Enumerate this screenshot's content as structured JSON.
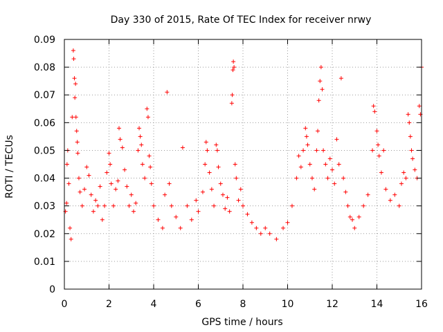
{
  "chart_data": {
    "type": "scatter",
    "title": "Day 330 of 2015, Rate Of TEC Index for receiver nrwy",
    "xlabel": "GPS time / hours",
    "ylabel": "ROTI / TECUs",
    "xlim": [
      0,
      16
    ],
    "ylim": [
      0,
      0.09
    ],
    "x_ticks": [
      0,
      2,
      4,
      6,
      8,
      10,
      12,
      14,
      16
    ],
    "x_tick_labels": [
      "0",
      "2",
      "4",
      "6",
      "8",
      "10",
      "12",
      "14",
      "16"
    ],
    "y_ticks": [
      0,
      0.01,
      0.02,
      0.03,
      0.04,
      0.05,
      0.06,
      0.07,
      0.08,
      0.09
    ],
    "y_tick_labels": [
      "0",
      "0.01",
      "0.02",
      "0.03",
      "0.04",
      "0.05",
      "0.06",
      "0.07",
      "0.08",
      "0.09"
    ],
    "grid": true,
    "marker": "+",
    "marker_color": "#ff0000",
    "series": [
      {
        "name": "ROTI",
        "points": [
          [
            0.05,
            0.028
          ],
          [
            0.1,
            0.031
          ],
          [
            0.12,
            0.045
          ],
          [
            0.15,
            0.05
          ],
          [
            0.2,
            0.038
          ],
          [
            0.25,
            0.022
          ],
          [
            0.3,
            0.018
          ],
          [
            0.35,
            0.062
          ],
          [
            0.4,
            0.086
          ],
          [
            0.42,
            0.083
          ],
          [
            0.45,
            0.076
          ],
          [
            0.47,
            0.069
          ],
          [
            0.5,
            0.074
          ],
          [
            0.52,
            0.062
          ],
          [
            0.55,
            0.057
          ],
          [
            0.58,
            0.053
          ],
          [
            0.6,
            0.049
          ],
          [
            0.65,
            0.04
          ],
          [
            0.7,
            0.035
          ],
          [
            0.8,
            0.03
          ],
          [
            0.9,
            0.036
          ],
          [
            1.0,
            0.044
          ],
          [
            1.1,
            0.041
          ],
          [
            1.2,
            0.034
          ],
          [
            1.3,
            0.028
          ],
          [
            1.4,
            0.032
          ],
          [
            1.5,
            0.03
          ],
          [
            1.6,
            0.037
          ],
          [
            1.7,
            0.025
          ],
          [
            1.8,
            0.03
          ],
          [
            1.9,
            0.042
          ],
          [
            2.0,
            0.049
          ],
          [
            2.05,
            0.045
          ],
          [
            2.1,
            0.038
          ],
          [
            2.2,
            0.03
          ],
          [
            2.3,
            0.036
          ],
          [
            2.4,
            0.039
          ],
          [
            2.45,
            0.058
          ],
          [
            2.5,
            0.054
          ],
          [
            2.6,
            0.051
          ],
          [
            2.7,
            0.043
          ],
          [
            2.8,
            0.037
          ],
          [
            2.9,
            0.03
          ],
          [
            3.0,
            0.034
          ],
          [
            3.1,
            0.028
          ],
          [
            3.2,
            0.031
          ],
          [
            3.3,
            0.05
          ],
          [
            3.35,
            0.058
          ],
          [
            3.4,
            0.055
          ],
          [
            3.45,
            0.052
          ],
          [
            3.5,
            0.045
          ],
          [
            3.6,
            0.04
          ],
          [
            3.7,
            0.065
          ],
          [
            3.75,
            0.062
          ],
          [
            3.8,
            0.048
          ],
          [
            3.85,
            0.044
          ],
          [
            3.9,
            0.038
          ],
          [
            4.0,
            0.03
          ],
          [
            4.2,
            0.025
          ],
          [
            4.4,
            0.022
          ],
          [
            4.5,
            0.034
          ],
          [
            4.6,
            0.071
          ],
          [
            4.7,
            0.038
          ],
          [
            4.8,
            0.03
          ],
          [
            5.0,
            0.026
          ],
          [
            5.2,
            0.022
          ],
          [
            5.3,
            0.051
          ],
          [
            5.5,
            0.03
          ],
          [
            5.7,
            0.025
          ],
          [
            5.9,
            0.032
          ],
          [
            6.0,
            0.028
          ],
          [
            6.2,
            0.035
          ],
          [
            6.3,
            0.045
          ],
          [
            6.35,
            0.053
          ],
          [
            6.4,
            0.05
          ],
          [
            6.5,
            0.042
          ],
          [
            6.6,
            0.036
          ],
          [
            6.7,
            0.03
          ],
          [
            6.8,
            0.052
          ],
          [
            6.85,
            0.05
          ],
          [
            6.9,
            0.044
          ],
          [
            7.0,
            0.038
          ],
          [
            7.1,
            0.034
          ],
          [
            7.2,
            0.029
          ],
          [
            7.3,
            0.033
          ],
          [
            7.4,
            0.028
          ],
          [
            7.5,
            0.067
          ],
          [
            7.52,
            0.07
          ],
          [
            7.55,
            0.079
          ],
          [
            7.57,
            0.082
          ],
          [
            7.6,
            0.08
          ],
          [
            7.65,
            0.045
          ],
          [
            7.7,
            0.04
          ],
          [
            7.8,
            0.032
          ],
          [
            7.9,
            0.036
          ],
          [
            8.0,
            0.03
          ],
          [
            8.2,
            0.027
          ],
          [
            8.4,
            0.024
          ],
          [
            8.6,
            0.022
          ],
          [
            8.8,
            0.02
          ],
          [
            9.0,
            0.022
          ],
          [
            9.2,
            0.02
          ],
          [
            9.5,
            0.018
          ],
          [
            9.8,
            0.022
          ],
          [
            10.0,
            0.024
          ],
          [
            10.2,
            0.03
          ],
          [
            10.4,
            0.04
          ],
          [
            10.5,
            0.048
          ],
          [
            10.6,
            0.044
          ],
          [
            10.7,
            0.05
          ],
          [
            10.8,
            0.058
          ],
          [
            10.85,
            0.055
          ],
          [
            10.9,
            0.052
          ],
          [
            11.0,
            0.045
          ],
          [
            11.1,
            0.04
          ],
          [
            11.2,
            0.036
          ],
          [
            11.3,
            0.05
          ],
          [
            11.35,
            0.057
          ],
          [
            11.4,
            0.068
          ],
          [
            11.45,
            0.075
          ],
          [
            11.5,
            0.08
          ],
          [
            11.55,
            0.072
          ],
          [
            11.6,
            0.05
          ],
          [
            11.7,
            0.045
          ],
          [
            11.8,
            0.04
          ],
          [
            11.9,
            0.047
          ],
          [
            12.0,
            0.043
          ],
          [
            12.1,
            0.038
          ],
          [
            12.2,
            0.054
          ],
          [
            12.3,
            0.045
          ],
          [
            12.4,
            0.076
          ],
          [
            12.5,
            0.04
          ],
          [
            12.6,
            0.035
          ],
          [
            12.7,
            0.03
          ],
          [
            12.8,
            0.026
          ],
          [
            12.9,
            0.025
          ],
          [
            13.0,
            0.022
          ],
          [
            13.2,
            0.026
          ],
          [
            13.4,
            0.03
          ],
          [
            13.6,
            0.034
          ],
          [
            13.8,
            0.05
          ],
          [
            13.85,
            0.066
          ],
          [
            13.9,
            0.064
          ],
          [
            14.0,
            0.057
          ],
          [
            14.05,
            0.052
          ],
          [
            14.1,
            0.048
          ],
          [
            14.2,
            0.042
          ],
          [
            14.3,
            0.05
          ],
          [
            14.4,
            0.036
          ],
          [
            14.6,
            0.032
          ],
          [
            14.8,
            0.034
          ],
          [
            15.0,
            0.03
          ],
          [
            15.1,
            0.038
          ],
          [
            15.2,
            0.042
          ],
          [
            15.3,
            0.04
          ],
          [
            15.4,
            0.063
          ],
          [
            15.45,
            0.06
          ],
          [
            15.5,
            0.055
          ],
          [
            15.55,
            0.05
          ],
          [
            15.6,
            0.047
          ],
          [
            15.7,
            0.043
          ],
          [
            15.8,
            0.04
          ],
          [
            15.9,
            0.066
          ],
          [
            15.95,
            0.063
          ],
          [
            16.0,
            0.08
          ]
        ]
      }
    ]
  }
}
